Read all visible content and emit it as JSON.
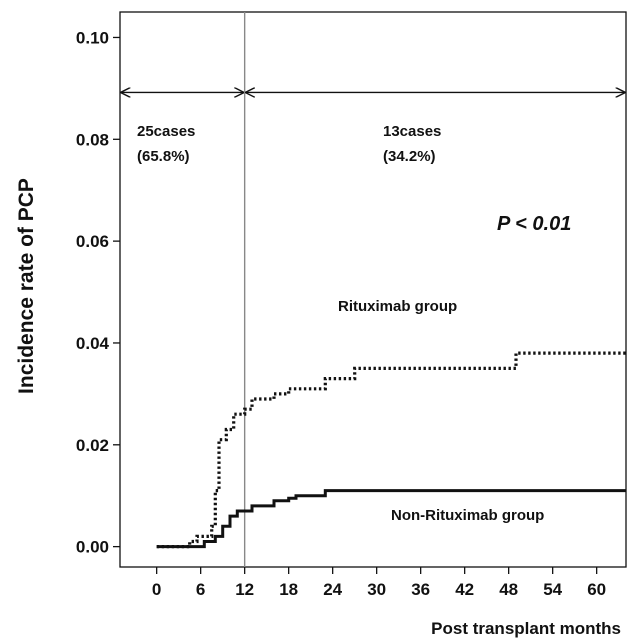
{
  "chart_data": {
    "type": "line",
    "title": "",
    "xlabel": "Post transplant months",
    "ylabel": "Incidence  rate of PCP",
    "xlim": [
      -5,
      64
    ],
    "ylim": [
      -0.004,
      0.105
    ],
    "x_ticks": [
      0,
      6,
      12,
      18,
      24,
      30,
      36,
      42,
      48,
      54,
      60
    ],
    "x_tick_labels": [
      "0",
      "6",
      "12",
      "18",
      "24",
      "30",
      "36",
      "42",
      "48",
      "54",
      "60"
    ],
    "y_ticks": [
      0.0,
      0.02,
      0.04,
      0.06,
      0.08,
      0.1
    ],
    "y_tick_labels": [
      "0.00",
      "0.02",
      "0.04",
      "0.06",
      "0.08",
      "0.10"
    ],
    "grid": false,
    "line_style": "step",
    "series": [
      {
        "name": "Rituximab group",
        "style": "dotted",
        "points": [
          [
            0,
            0.0
          ],
          [
            4.5,
            0.0
          ],
          [
            4.5,
            0.001
          ],
          [
            5.5,
            0.001
          ],
          [
            5.5,
            0.002
          ],
          [
            7.5,
            0.002
          ],
          [
            7.5,
            0.004
          ],
          [
            8,
            0.004
          ],
          [
            8,
            0.011
          ],
          [
            8.5,
            0.011
          ],
          [
            8.5,
            0.021
          ],
          [
            9.5,
            0.021
          ],
          [
            9.5,
            0.023
          ],
          [
            10.5,
            0.023
          ],
          [
            10.5,
            0.026
          ],
          [
            12,
            0.026
          ],
          [
            12,
            0.027
          ],
          [
            13,
            0.027
          ],
          [
            13,
            0.029
          ],
          [
            16,
            0.029
          ],
          [
            16,
            0.03
          ],
          [
            18,
            0.03
          ],
          [
            18,
            0.031
          ],
          [
            23,
            0.031
          ],
          [
            23,
            0.033
          ],
          [
            27,
            0.033
          ],
          [
            27,
            0.035
          ],
          [
            49,
            0.035
          ],
          [
            49,
            0.038
          ],
          [
            64,
            0.038
          ]
        ]
      },
      {
        "name": "Non-Rituximab group",
        "style": "solid",
        "points": [
          [
            0,
            0.0
          ],
          [
            6.5,
            0.0
          ],
          [
            6.5,
            0.001
          ],
          [
            8,
            0.001
          ],
          [
            8,
            0.002
          ],
          [
            9,
            0.002
          ],
          [
            9,
            0.004
          ],
          [
            10,
            0.004
          ],
          [
            10,
            0.006
          ],
          [
            11,
            0.006
          ],
          [
            11,
            0.007
          ],
          [
            13,
            0.007
          ],
          [
            13,
            0.008
          ],
          [
            16,
            0.008
          ],
          [
            16,
            0.009
          ],
          [
            18,
            0.009
          ],
          [
            18,
            0.0095
          ],
          [
            19,
            0.0095
          ],
          [
            19,
            0.01
          ],
          [
            23,
            0.01
          ],
          [
            23,
            0.011
          ],
          [
            64,
            0.011
          ]
        ]
      }
    ],
    "vertical_line_x": 12,
    "interval_arrows": [
      {
        "from": -5,
        "to": 12,
        "y": 0.08
      },
      {
        "from": 12,
        "to": 64,
        "y": 0.08
      }
    ],
    "annotations": {
      "left_cases": "25cases",
      "left_pct": "(65.8%)",
      "right_cases": "13cases",
      "right_pct": "(34.2%)",
      "p_value": "P < 0.01"
    },
    "colors": {
      "line": "#111111",
      "vline": "#888888",
      "axis": "#111111"
    }
  }
}
